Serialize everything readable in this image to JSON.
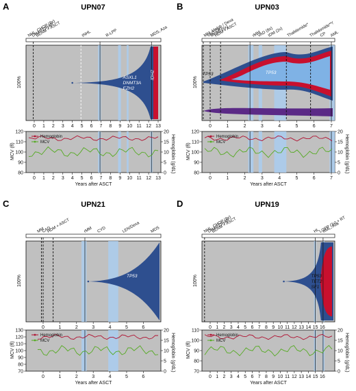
{
  "panels": [
    {
      "letter": "A",
      "title": "UPN07",
      "xmax": 13,
      "xticks": [
        "0",
        "1",
        "2",
        "3",
        "4",
        "5",
        "6",
        "7",
        "8",
        "9",
        "10",
        "11",
        "12",
        "13"
      ],
      "events": [
        "NHL, CHOP (8x)",
        "DHAP/DHAP",
        "BEAM + ASCT",
        "tNHL",
        "R-LPP",
        "MDS, Aza"
      ],
      "genes": [
        "ASXL1",
        "DNMT3A",
        "EZH2"
      ],
      "genes2": [
        "IDH2"
      ],
      "plot_type": "fish",
      "ylabel": "100%",
      "xlabel": "Years after ASCT",
      "ylim_left": [
        80,
        120
      ],
      "yticks_left": [
        "80",
        "90",
        "100",
        "110",
        "120"
      ],
      "ylim_right": [
        0,
        20
      ],
      "yticks_right": [
        "0",
        "5",
        "10",
        "15",
        "20"
      ],
      "ylabel_left": "MCV (fl)",
      "ylabel_right": "Hemoglobin (g/dL)"
    },
    {
      "letter": "B",
      "title": "UPN03",
      "xmax": 7,
      "xticks": [
        "0",
        "1",
        "2",
        "3",
        "4",
        "5",
        "6",
        "7"
      ],
      "events": [
        "MM, Melph / Dexa",
        "VAD (3x)",
        "Melph (6x)",
        "HDM + ASCT",
        "rMM",
        "VAD (8x)",
        "IDM (2x)",
        "Thalidomide*",
        "Thalidomide**/",
        "CP",
        "AML"
      ],
      "genes": [
        "TP53"
      ],
      "genes2": [
        "TP53"
      ],
      "plot_type": "fish",
      "ylabel": "100%",
      "xlabel": "Years after ASCT",
      "ylim_left": [
        80,
        120
      ],
      "yticks_left": [
        "80",
        "90",
        "100",
        "110",
        "120"
      ],
      "ylim_right": [
        0,
        20
      ],
      "yticks_right": [
        "0",
        "5",
        "10",
        "15",
        "20"
      ],
      "ylabel_left": "MCV (fl)",
      "ylabel_right": "Hemoglobin (g/dL)"
    },
    {
      "letter": "C",
      "title": "UPN21",
      "xmax": 6.6,
      "xticks": [
        "0",
        "1",
        "2",
        "3",
        "4",
        "5",
        "6"
      ],
      "events": [
        "MM",
        "CAD",
        "HDM + ASCT",
        "rMM",
        "CYD",
        "LEN/Dexa",
        "MDS"
      ],
      "genes": [
        "TP53"
      ],
      "genes2": [],
      "plot_type": "fish",
      "ylabel": "100%",
      "xlabel": "Years after ASCT",
      "ylim_left": [
        70,
        130
      ],
      "yticks_left": [
        "70",
        "80",
        "90",
        "100",
        "110",
        "120",
        "130"
      ],
      "ylim_right": [
        0,
        20
      ],
      "yticks_right": [
        "0",
        "5",
        "10",
        "15",
        "20"
      ],
      "ylabel_left": "MCV (fl)",
      "ylabel_right": "Hemoglobin (g/dL)"
    },
    {
      "letter": "D",
      "title": "UPN19",
      "xmax": 16.5,
      "xticks": [
        "0",
        "1",
        "2",
        "3",
        "4",
        "5",
        "6",
        "7",
        "8",
        "9",
        "10",
        "11",
        "12",
        "13",
        "14",
        "15",
        "16"
      ],
      "events": [
        "NHL, CHOP (8x)",
        "DHAP/DHAP",
        "BEAM + ASCT",
        "HL",
        "LOPP (3x) + RT",
        "AML, Aza"
      ],
      "genes": [
        "TP53",
        "TET2",
        "SF1"
      ],
      "genes2": [],
      "plot_type": "fish",
      "ylabel": "100%",
      "xlabel": "Years after ASCT",
      "ylim_left": [
        70,
        110
      ],
      "yticks_left": [
        "70",
        "80",
        "90",
        "100",
        "110"
      ],
      "ylim_right": [
        0,
        20
      ],
      "yticks_right": [
        "0",
        "5",
        "10",
        "15",
        "20"
      ],
      "ylabel_left": "MCV (fl)",
      "ylabel_right": "Hemoglobin (g/dL)"
    }
  ],
  "legend": {
    "hemoglobin": "Hemoglobin",
    "mcv": "MCV"
  },
  "colors": {
    "background": "#c0c0c0",
    "navy": "#2e4f8f",
    "red": "#c8102e",
    "lightblue": "#7fb2e5",
    "purple": "#5b2a86",
    "green": "#55aa22",
    "hb": "#b01030",
    "bluebar": "#a9cdf0"
  }
}
